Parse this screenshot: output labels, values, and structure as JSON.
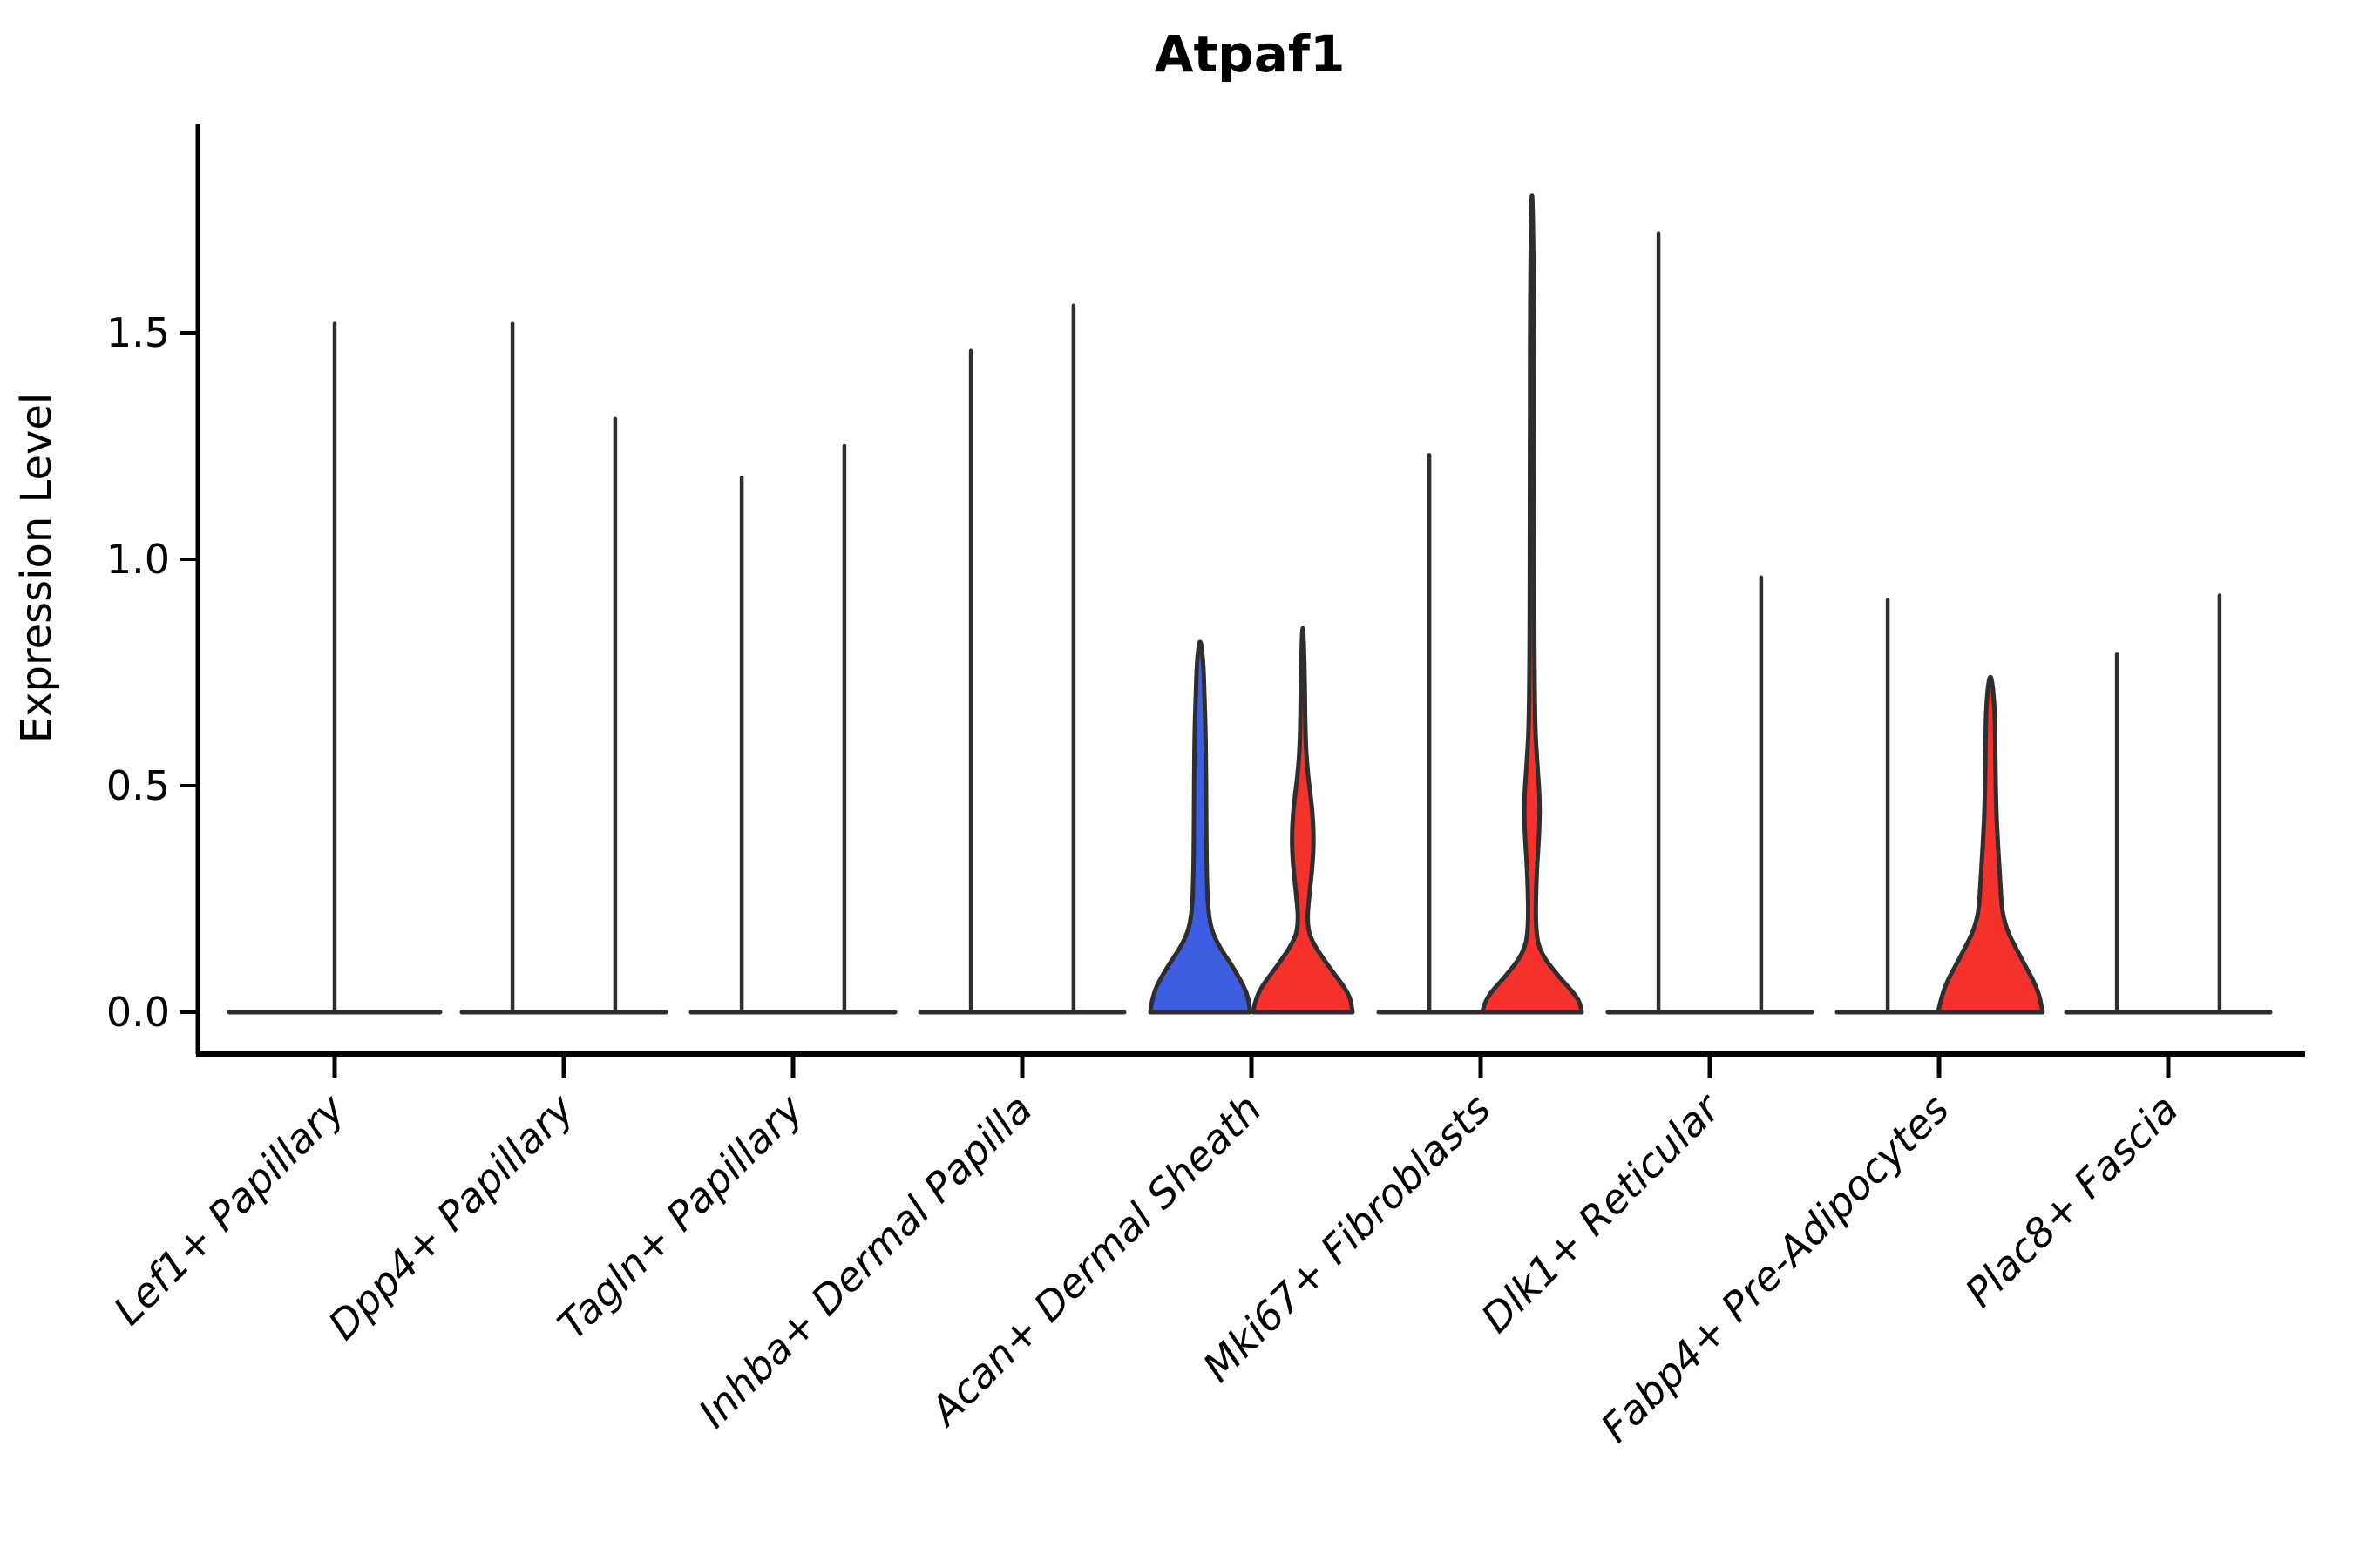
{
  "chart_data": {
    "type": "violin",
    "title": "Atpaf1",
    "ylabel": "Expression Level",
    "xlabel": "",
    "legend": "none",
    "grid": false,
    "ylim": [
      0,
      1.96
    ],
    "yticks": [
      {
        "value": 0.0,
        "label": "0.0"
      },
      {
        "value": 0.5,
        "label": "0.5"
      },
      {
        "value": 1.0,
        "label": "1.0"
      },
      {
        "value": 1.5,
        "label": "1.5"
      }
    ],
    "colors": {
      "blue": "#3D5EE0",
      "red": "#F5312B",
      "outline": "#2E2E2E",
      "axis": "#000000"
    },
    "categories": [
      {
        "label": "Lef1+ Papillary",
        "max_values": [
          1.52
        ],
        "baseline": [
          [
            -0.46,
            0.46
          ]
        ],
        "violins": [
          {
            "kind": "spike",
            "offset": 0,
            "height": 1.52
          }
        ]
      },
      {
        "label": "Dpp4+ Papillary",
        "max_values": [
          1.52,
          1.31
        ],
        "baseline": [
          [
            -0.445,
            0.445
          ]
        ],
        "violins": [
          {
            "kind": "spike",
            "offset": -0.224,
            "height": 1.52
          },
          {
            "kind": "spike",
            "offset": 0.224,
            "height": 1.31
          }
        ]
      },
      {
        "label": "Tagln+ Papillary",
        "max_values": [
          1.18,
          1.25
        ],
        "baseline": [
          [
            -0.445,
            0.445
          ]
        ],
        "violins": [
          {
            "kind": "spike",
            "offset": -0.224,
            "height": 1.18
          },
          {
            "kind": "spike",
            "offset": 0.224,
            "height": 1.25
          }
        ]
      },
      {
        "label": "Inhba+ Dermal Papilla",
        "max_values": [
          1.46,
          1.56
        ],
        "baseline": [
          [
            -0.445,
            0.445
          ]
        ],
        "violins": [
          {
            "kind": "spike",
            "offset": -0.224,
            "height": 1.46
          },
          {
            "kind": "spike",
            "offset": 0.224,
            "height": 1.56
          }
        ]
      },
      {
        "label": "Acan+ Dermal Sheath",
        "max_values": [
          0.83,
          0.88
        ],
        "baseline": [],
        "violins": [
          {
            "kind": "body",
            "offset": -0.224,
            "color": "blue",
            "profile": [
              [
                0,
                0.217
              ],
              [
                0.04,
                0.209
              ],
              [
                0.1,
                0.144
              ],
              [
                0.15,
                0.076
              ],
              [
                0.2,
                0.038
              ],
              [
                0.3,
                0.0285
              ],
              [
                0.45,
                0.0266
              ],
              [
                0.6,
                0.0247
              ],
              [
                0.7,
                0.019
              ],
              [
                0.78,
                0.0133
              ],
              [
                0.83,
                0
              ]
            ]
          },
          {
            "kind": "body",
            "offset": 0.224,
            "color": "red",
            "profile": [
              [
                0,
                0.217
              ],
              [
                0.04,
                0.205
              ],
              [
                0.1,
                0.114
              ],
              [
                0.16,
                0.034
              ],
              [
                0.2,
                0.019
              ],
              [
                0.25,
                0.0266
              ],
              [
                0.32,
                0.0418
              ],
              [
                0.38,
                0.0483
              ],
              [
                0.45,
                0.0418
              ],
              [
                0.52,
                0.0228
              ],
              [
                0.6,
                0.0114
              ],
              [
                0.75,
                0.0084
              ],
              [
                0.88,
                0
              ]
            ]
          }
        ]
      },
      {
        "label": "Mki67+ Fibroblasts",
        "max_values": [
          1.23,
          1.87
        ],
        "baseline": [
          [
            -0.445,
            -0.002
          ]
        ],
        "violins": [
          {
            "kind": "spike",
            "offset": -0.224,
            "height": 1.23
          },
          {
            "kind": "body",
            "offset": 0.224,
            "color": "red",
            "profile": [
              [
                0,
                0.217
              ],
              [
                0.03,
                0.205
              ],
              [
                0.08,
                0.114
              ],
              [
                0.13,
                0.038
              ],
              [
                0.18,
                0.0152
              ],
              [
                0.3,
                0.019
              ],
              [
                0.4,
                0.0323
              ],
              [
                0.47,
                0.0342
              ],
              [
                0.55,
                0.0228
              ],
              [
                0.65,
                0.0114
              ],
              [
                1.1,
                0.0084
              ],
              [
                1.6,
                0.0084
              ],
              [
                1.87,
                0
              ]
            ]
          }
        ]
      },
      {
        "label": "Dlk1+ Reticular",
        "max_values": [
          1.72,
          0.96
        ],
        "baseline": [
          [
            -0.445,
            0.445
          ]
        ],
        "violins": [
          {
            "kind": "spike",
            "offset": -0.224,
            "height": 1.72
          },
          {
            "kind": "spike",
            "offset": 0.224,
            "height": 0.96
          }
        ]
      },
      {
        "label": "Fabp4+ Pre-Adipocytes",
        "max_values": [
          0.91,
          0.76
        ],
        "baseline": [
          [
            -0.445,
            -0.002
          ]
        ],
        "violins": [
          {
            "kind": "spike",
            "offset": -0.224,
            "height": 0.91
          },
          {
            "kind": "body",
            "offset": 0.224,
            "color": "red",
            "profile": [
              [
                0,
                0.228
              ],
              [
                0.05,
                0.209
              ],
              [
                0.12,
                0.133
              ],
              [
                0.2,
                0.053
              ],
              [
                0.3,
                0.0418
              ],
              [
                0.43,
                0.0255
              ],
              [
                0.56,
                0.0217
              ],
              [
                0.68,
                0.019
              ],
              [
                0.76,
                0
              ]
            ]
          }
        ]
      },
      {
        "label": "Plac8+ Fascia",
        "max_values": [
          0.79,
          0.92
        ],
        "baseline": [
          [
            -0.445,
            0.445
          ]
        ],
        "violins": [
          {
            "kind": "spike",
            "offset": -0.224,
            "height": 0.79
          },
          {
            "kind": "spike",
            "offset": 0.224,
            "height": 0.92
          }
        ]
      }
    ]
  }
}
